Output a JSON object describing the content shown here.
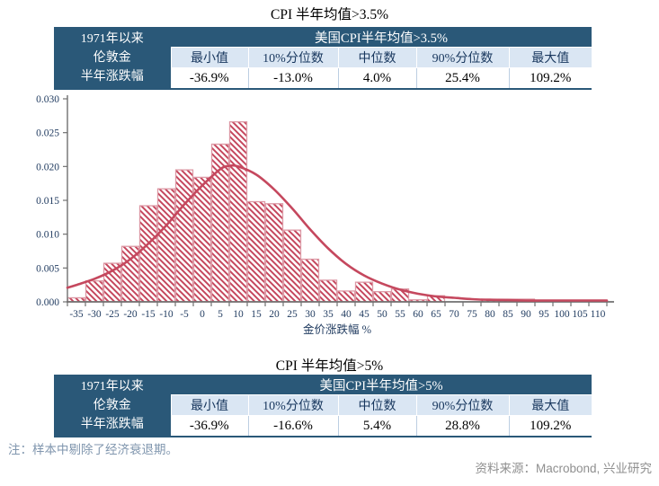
{
  "titles": {
    "chart1": "CPI 半年均值>3.5%",
    "chart2": "CPI 半年均值>5%"
  },
  "tables": [
    {
      "row_label_lines": [
        "1971年以来",
        "伦敦金",
        "半年涨跌幅"
      ],
      "span_header": "美国CPI半年均值>3.5%",
      "col_headers": [
        "最小值",
        "10%分位数",
        "中位数",
        "90%分位数",
        "最大值"
      ],
      "values": [
        "-36.9%",
        "-13.0%",
        "4.0%",
        "25.4%",
        "109.2%"
      ]
    },
    {
      "row_label_lines": [
        "1971年以来",
        "伦敦金",
        "半年涨跌幅"
      ],
      "span_header": "美国CPI半年均值>5%",
      "col_headers": [
        "最小值",
        "10%分位数",
        "中位数",
        "90%分位数",
        "最大值"
      ],
      "values": [
        "-36.9%",
        "-16.6%",
        "5.4%",
        "28.8%",
        "109.2%"
      ]
    }
  ],
  "footer": {
    "note_prefix": "注：",
    "note_text": "样本中剔除了经济衰退期。",
    "source": "资料来源：Macrobond, 兴业研究"
  },
  "chart_data": {
    "type": "bar",
    "subtype": "histogram_with_density_curve",
    "title": "CPI 半年均值>3.5%",
    "xlabel": "金价涨跌幅 %",
    "ylabel": "",
    "bin_width": 5,
    "xlim": [
      -37.5,
      112.5
    ],
    "ylim": [
      0,
      0.03
    ],
    "y_ticks": [
      0,
      0.005,
      0.01,
      0.015,
      0.02,
      0.025,
      0.03
    ],
    "grid": false,
    "legend": "none",
    "categories": [
      -35,
      -30,
      -25,
      -20,
      -15,
      -10,
      -5,
      0,
      5,
      10,
      15,
      20,
      25,
      30,
      35,
      40,
      45,
      50,
      55,
      60,
      65,
      70,
      75,
      80,
      85,
      90,
      95,
      100,
      105,
      110
    ],
    "values": [
      0.0006,
      0.0031,
      0.0057,
      0.0082,
      0.0142,
      0.0167,
      0.0195,
      0.0184,
      0.0233,
      0.0266,
      0.0148,
      0.0145,
      0.0106,
      0.0063,
      0.0032,
      0.0016,
      0.0029,
      0.0015,
      0.0019,
      0.0003,
      0.0009,
      0,
      0,
      0.0004,
      0.0004,
      0.0004,
      0,
      0,
      0,
      0
    ],
    "density_curve": {
      "x": [
        -37.5,
        -35,
        -30,
        -25,
        -20,
        -15,
        -10,
        -5,
        0,
        5,
        7.5,
        10,
        15,
        20,
        25,
        30,
        35,
        40,
        45,
        50,
        55,
        60,
        65,
        70,
        75,
        80,
        85,
        90,
        95,
        100,
        105,
        110,
        112.5
      ],
      "y": [
        0.0021,
        0.0025,
        0.0034,
        0.0046,
        0.0063,
        0.0086,
        0.0113,
        0.0144,
        0.0172,
        0.0196,
        0.0201,
        0.02,
        0.0188,
        0.0166,
        0.0138,
        0.0107,
        0.0079,
        0.0056,
        0.0039,
        0.0027,
        0.0018,
        0.0012,
        0.0008,
        0.0006,
        0.0004,
        0.0003,
        0.00025,
        0.0002,
        0.0002,
        0.0002,
        0.0002,
        0.0002,
        0.0002
      ]
    },
    "colors": {
      "bar_hatch": "#C5475D",
      "bar_border": "#DD9AA6",
      "curve": "#C5485E",
      "axis": "#707070",
      "tick_label": "#1F3A5F",
      "table_dark_blue": "#2A5878",
      "table_light_blue": "#DAE6F3"
    }
  }
}
